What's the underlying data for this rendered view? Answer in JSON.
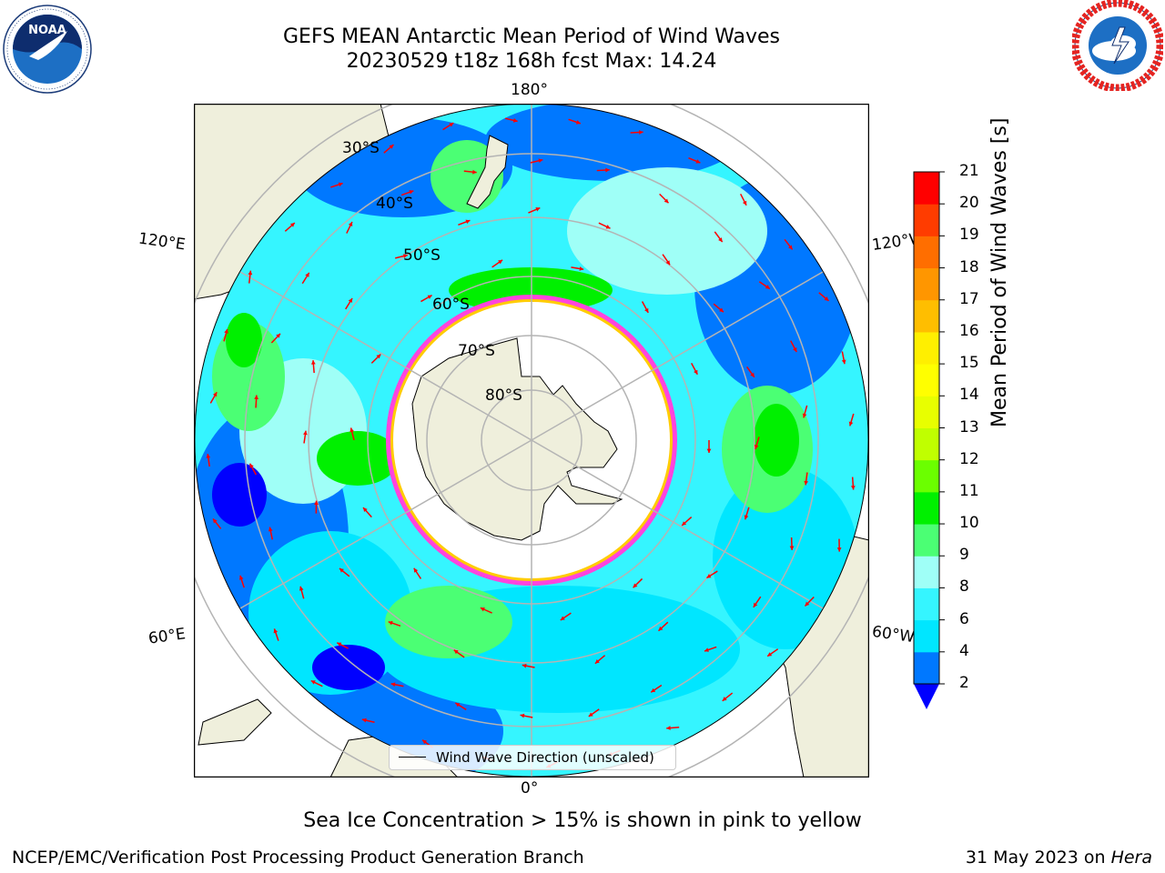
{
  "header": {
    "title_line1": "GEFS MEAN Antarctic Mean Period of Wind Waves",
    "title_line2": "20230529 t18z 168h fcst   Max: 14.24"
  },
  "logos": {
    "left": "noaa-logo",
    "right": "nws-logo"
  },
  "map": {
    "projection": "south-polar-stereographic",
    "longitude_labels": {
      "top": "180°",
      "bottom": "0°",
      "upper_left": "120°E",
      "upper_right": "120°W",
      "lower_left": "60°E",
      "lower_right": "60°W"
    },
    "latitude_labels": [
      "30°S",
      "40°S",
      "50°S",
      "60°S",
      "70°S",
      "80°S"
    ],
    "legend_label": "Wind Wave Direction (unscaled)",
    "arrow_color": "#ff0000",
    "land_color": "#efefdc",
    "sea_ice_colors": [
      "#ff44dd",
      "#ffffff",
      "#ffcc00"
    ]
  },
  "colorbar": {
    "label": "Mean Period of Wind Waves [s]",
    "ticks": [
      "2",
      "4",
      "6",
      "8",
      "9",
      "10",
      "11",
      "12",
      "13",
      "14",
      "15",
      "16",
      "17",
      "18",
      "19",
      "20",
      "21"
    ],
    "colors": [
      "#0078ff",
      "#00e6ff",
      "#35f5ff",
      "#9ffff7",
      "#4bff74",
      "#00f000",
      "#6bff00",
      "#c0ff00",
      "#e8ff00",
      "#ffff00",
      "#ffef00",
      "#ffbe00",
      "#ff9600",
      "#ff6e00",
      "#ff3c00",
      "#ff0000"
    ],
    "under_color": "#0000ff"
  },
  "caption": "Sea Ice Concentration > 15% is shown in pink to yellow",
  "footer": {
    "left": "NCEP/EMC/Verification Post Processing Product Generation Branch",
    "right_date": "31 May 2023 on ",
    "right_machine": "Hera"
  }
}
